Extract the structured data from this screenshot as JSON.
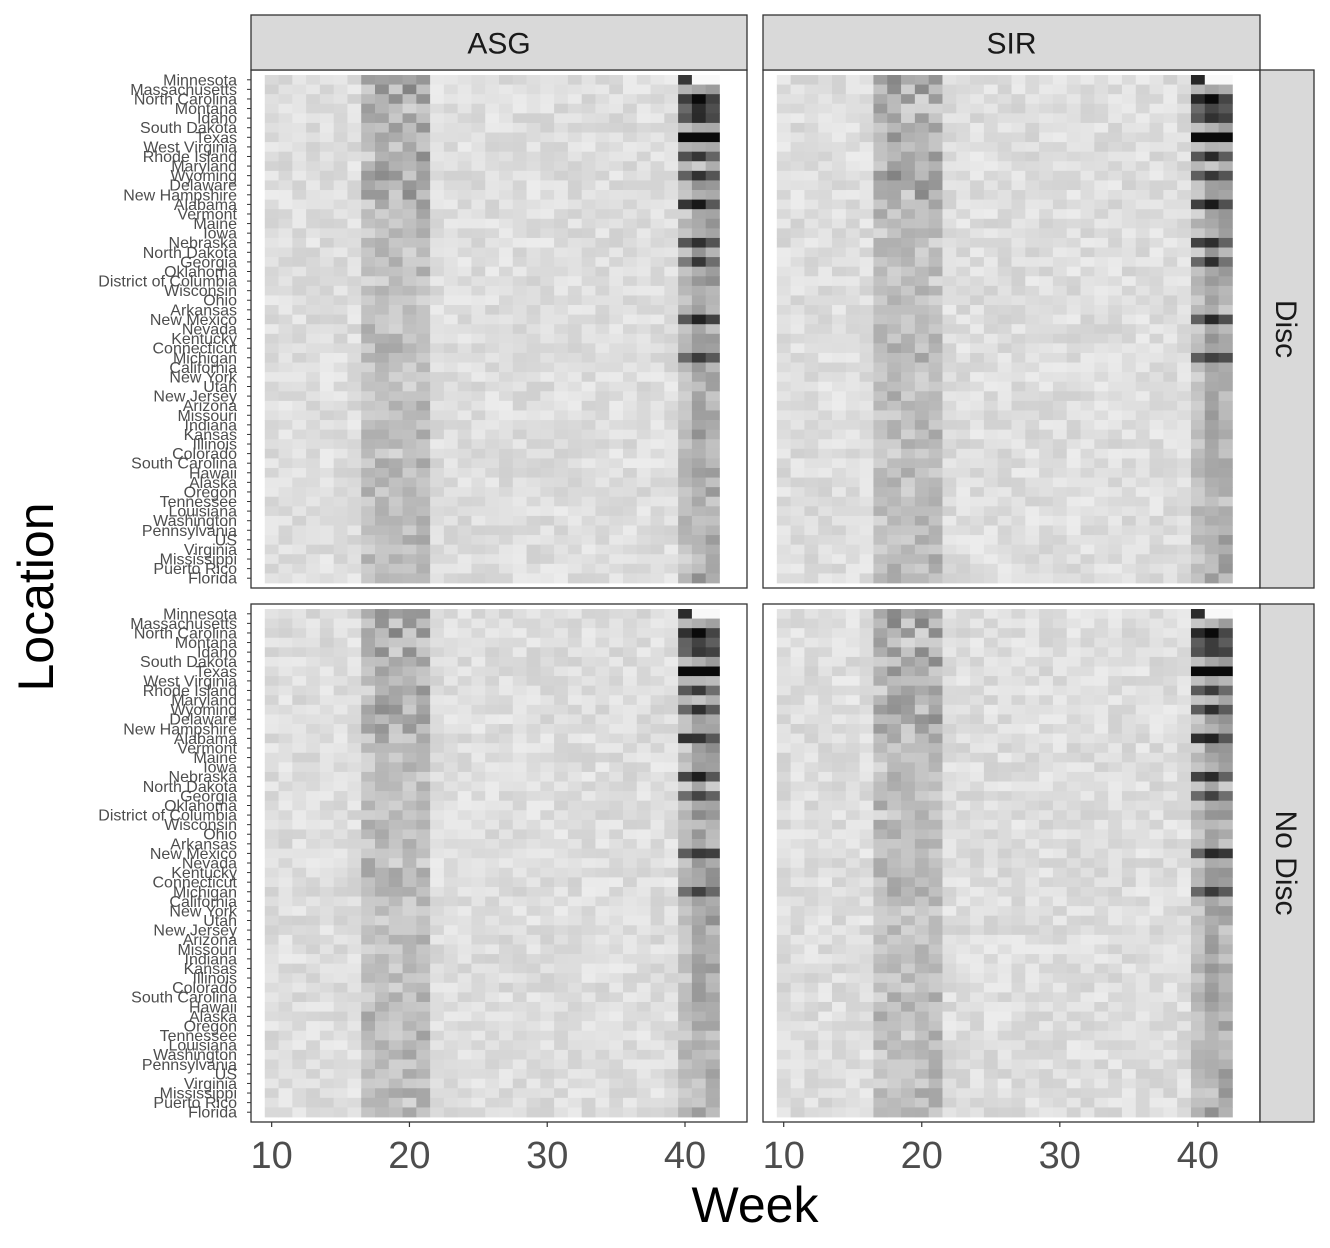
{
  "chart_data": {
    "type": "heatmap",
    "facet_columns": [
      "ASG",
      "SIR"
    ],
    "facet_rows": [
      "Disc",
      "No Disc"
    ],
    "xlabel": "Week",
    "ylabel": "Location",
    "xlim": [
      8.5,
      44.5
    ],
    "x_ticks": [
      10,
      20,
      30,
      40
    ],
    "weeks": [
      10,
      42
    ],
    "color_scale": "white-to-black (greyscale intensity)",
    "locations": [
      "Minnesota",
      "Massachusetts",
      "North Carolina",
      "Montana",
      "Idaho",
      "South Dakota",
      "Texas",
      "West Virginia",
      "Rhode Island",
      "Maryland",
      "Wyoming",
      "Delaware",
      "New Hampshire",
      "Alabama",
      "Vermont",
      "Maine",
      "Iowa",
      "Nebraska",
      "North Dakota",
      "Georgia",
      "Oklahoma",
      "District of Columbia",
      "Wisconsin",
      "Ohio",
      "Arkansas",
      "New Mexico",
      "Nevada",
      "Kentucky",
      "Connecticut",
      "Michigan",
      "California",
      "New York",
      "Utah",
      "New Jersey",
      "Arizona",
      "Missouri",
      "Indiana",
      "Kansas",
      "Illinois",
      "Colorado",
      "South Carolina",
      "Hawaii",
      "Alaska",
      "Oregon",
      "Tennessee",
      "Louisiana",
      "Washington",
      "Pennsylvania",
      "US",
      "Virginia",
      "Mississippi",
      "Puerto Rico",
      "Florida"
    ]
  }
}
